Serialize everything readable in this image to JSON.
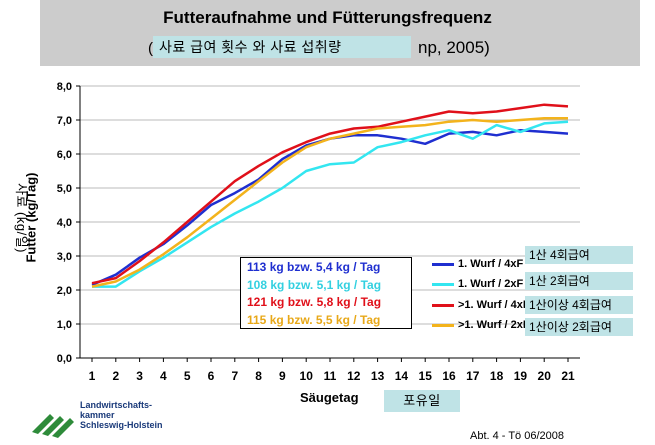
{
  "header": {
    "title": "Futteraufnahme und Fütterungsfrequenz",
    "subtitle_tail": "np, 2005)",
    "subtitle_bracket": "(",
    "korean_title": "사료 급여 횟수 와 사료 섭취량"
  },
  "chart_data": {
    "type": "line",
    "xlabel": "Säugetag",
    "ylabel": "Futter (kg/Tag)",
    "xlabel_ko": "포유일",
    "ylabel_ko": "사료 (kg/일)",
    "x": [
      1,
      2,
      3,
      4,
      5,
      6,
      7,
      8,
      9,
      10,
      11,
      12,
      13,
      14,
      15,
      16,
      17,
      18,
      19,
      20,
      21
    ],
    "ylim": [
      0,
      8
    ],
    "yticks": [
      "0,0",
      "1,0",
      "2,0",
      "3,0",
      "4,0",
      "5,0",
      "6,0",
      "7,0",
      "8,0"
    ],
    "grid": "horizontal",
    "series": [
      {
        "name": "1. Wurf / 4xF",
        "name_ko": "1산 4회급여",
        "color": "#1f2fd0",
        "values": [
          2.15,
          2.45,
          2.95,
          3.35,
          3.9,
          4.5,
          4.85,
          5.25,
          5.85,
          6.25,
          6.45,
          6.55,
          6.55,
          6.45,
          6.3,
          6.6,
          6.65,
          6.55,
          6.7,
          6.65,
          6.6
        ]
      },
      {
        "name": "1. Wurf / 2xF",
        "name_ko": "1산 2회급여",
        "color": "#33e6f0",
        "values": [
          2.1,
          2.1,
          2.55,
          2.95,
          3.4,
          3.85,
          4.25,
          4.6,
          5.0,
          5.5,
          5.7,
          5.75,
          6.2,
          6.35,
          6.55,
          6.7,
          6.45,
          6.85,
          6.65,
          6.9,
          6.95
        ]
      },
      {
        "name": ">1. Wurf / 4xF",
        "name_ko": "1산이상 4회급여",
        "color": "#e0101a",
        "values": [
          2.2,
          2.35,
          2.85,
          3.4,
          4.0,
          4.6,
          5.2,
          5.65,
          6.05,
          6.35,
          6.6,
          6.75,
          6.8,
          6.95,
          7.1,
          7.25,
          7.2,
          7.25,
          7.35,
          7.45,
          7.4
        ]
      },
      {
        "name": ">1. Wurf / 2xF",
        "name_ko": "1산이상 2회급여",
        "color": "#f3b31c",
        "values": [
          2.1,
          2.25,
          2.6,
          3.05,
          3.55,
          4.1,
          4.65,
          5.2,
          5.75,
          6.2,
          6.45,
          6.6,
          6.75,
          6.8,
          6.85,
          6.95,
          7.0,
          6.95,
          7.0,
          7.05,
          7.05
        ]
      }
    ],
    "annotations": [
      {
        "text": "113 kg bzw. 5,4 kg / Tag",
        "color": "#1f2fd0"
      },
      {
        "text": "108 kg bzw. 5,1 kg / Tag",
        "color": "#33d0e0"
      },
      {
        "text": "121 kg bzw. 5,8 kg / Tag",
        "color": "#e0101a"
      },
      {
        "text": "115 kg bzw. 5,5 kg / Tag",
        "color": "#e8a818"
      }
    ]
  },
  "logo": {
    "line1": "Landwirtschafts-",
    "line2": "kammer",
    "line3": "Schleswig-Holstein"
  },
  "footer": "Abt. 4 - Tö 06/2008"
}
